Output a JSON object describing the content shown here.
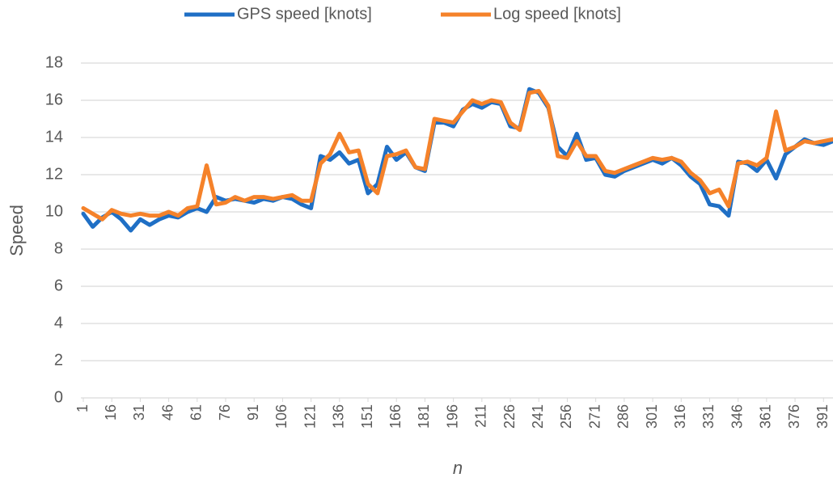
{
  "chart_data": {
    "type": "line",
    "x_label": "n",
    "y_label": "Speed",
    "x": [
      1,
      6,
      11,
      16,
      21,
      26,
      31,
      36,
      41,
      46,
      51,
      56,
      61,
      66,
      71,
      76,
      81,
      86,
      91,
      96,
      101,
      106,
      111,
      116,
      121,
      126,
      131,
      136,
      141,
      146,
      151,
      156,
      161,
      166,
      171,
      176,
      181,
      186,
      191,
      196,
      201,
      206,
      211,
      216,
      221,
      226,
      231,
      236,
      241,
      246,
      251,
      256,
      261,
      266,
      271,
      276,
      281,
      286,
      291,
      296,
      301,
      306,
      311,
      316,
      321,
      326,
      331,
      336,
      341,
      346,
      351,
      356,
      361,
      366,
      371,
      376,
      381,
      386,
      391,
      396
    ],
    "series": [
      {
        "name": "GPS speed [knots]",
        "color": "#1f6fc5",
        "values": [
          9.9,
          9.2,
          9.7,
          10.0,
          9.6,
          9.0,
          9.6,
          9.3,
          9.6,
          9.8,
          9.7,
          10.0,
          10.2,
          10.0,
          10.8,
          10.6,
          10.7,
          10.6,
          10.5,
          10.7,
          10.6,
          10.8,
          10.7,
          10.4,
          10.2,
          13.0,
          12.8,
          13.2,
          12.6,
          12.8,
          11.0,
          11.5,
          13.5,
          12.8,
          13.2,
          12.4,
          12.2,
          14.8,
          14.8,
          14.6,
          15.5,
          15.8,
          15.6,
          15.9,
          15.8,
          14.6,
          14.5,
          16.6,
          16.4,
          15.6,
          13.5,
          13.0,
          14.2,
          12.8,
          12.9,
          12.0,
          11.9,
          12.2,
          12.4,
          12.6,
          12.8,
          12.6,
          12.9,
          12.5,
          11.9,
          11.5,
          10.4,
          10.3,
          9.8,
          12.7,
          12.6,
          12.2,
          12.8,
          11.8,
          13.1,
          13.5,
          13.9,
          13.7,
          13.6,
          13.8
        ]
      },
      {
        "name": "Log speed [knots]",
        "color": "#f5822a",
        "values": [
          10.2,
          9.9,
          9.6,
          10.1,
          9.9,
          9.8,
          9.9,
          9.8,
          9.8,
          10.0,
          9.8,
          10.2,
          10.3,
          12.5,
          10.4,
          10.5,
          10.8,
          10.6,
          10.8,
          10.8,
          10.7,
          10.8,
          10.9,
          10.6,
          10.6,
          12.6,
          13.1,
          14.2,
          13.2,
          13.3,
          11.5,
          11.0,
          13.0,
          13.1,
          13.3,
          12.4,
          12.3,
          15.0,
          14.9,
          14.8,
          15.4,
          16.0,
          15.8,
          16.0,
          15.9,
          14.8,
          14.4,
          16.4,
          16.5,
          15.7,
          13.0,
          12.9,
          13.8,
          13.0,
          13.0,
          12.2,
          12.1,
          12.3,
          12.5,
          12.7,
          12.9,
          12.8,
          12.9,
          12.7,
          12.1,
          11.7,
          11.0,
          11.2,
          10.3,
          12.6,
          12.7,
          12.5,
          12.9,
          15.4,
          13.3,
          13.5,
          13.8,
          13.7,
          13.8,
          13.9
        ]
      }
    ],
    "xlim": [
      1,
      396
    ],
    "xticks": [
      1,
      16,
      31,
      46,
      61,
      76,
      91,
      106,
      121,
      136,
      151,
      166,
      181,
      196,
      211,
      226,
      241,
      256,
      271,
      286,
      301,
      316,
      331,
      346,
      361,
      376,
      391
    ],
    "ylim": [
      0,
      18
    ],
    "yticks": [
      0,
      2,
      4,
      6,
      8,
      10,
      12,
      14,
      16,
      18
    ],
    "grid": true,
    "legend": "top"
  }
}
